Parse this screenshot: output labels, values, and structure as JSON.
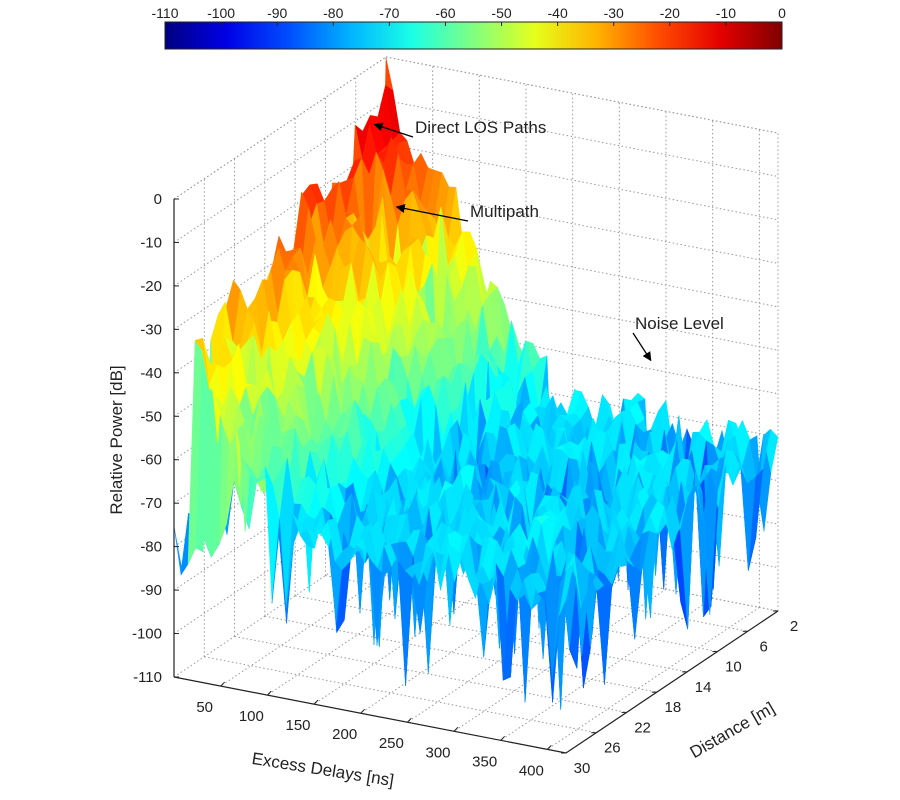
{
  "chart_data": {
    "type": "surface3d",
    "title": "",
    "xlabel": "Excess Delays [ns]",
    "ylabel": "Distance [m]",
    "zlabel": "Relative Power [dB]",
    "x_ticks": [
      50,
      100,
      150,
      200,
      250,
      300,
      350,
      400
    ],
    "y_ticks": [
      2,
      6,
      10,
      14,
      18,
      22,
      26,
      30
    ],
    "z_ticks": [
      0,
      -10,
      -20,
      -30,
      -40,
      -50,
      -60,
      -70,
      -80,
      -90,
      -100,
      -110
    ],
    "xlim": [
      0,
      420
    ],
    "ylim": [
      2,
      30
    ],
    "zlim": [
      -110,
      0
    ],
    "grid": true,
    "colormap": "jet",
    "colorbar": {
      "placement": "top",
      "range": [
        -110,
        0
      ],
      "ticks": [
        -110,
        -100,
        -90,
        -80,
        -70,
        -60,
        -50,
        -40,
        -30,
        -20,
        -10,
        0
      ]
    },
    "surface_features": {
      "los_peak_db_at_2m": -3,
      "los_peak_db_at_30m": -30,
      "noise_level_db": -60
    },
    "annotations": [
      {
        "text": "Direct LOS Paths",
        "target": {
          "x": 20,
          "y": 6,
          "z": -10
        }
      },
      {
        "text": "Multipath",
        "target": {
          "x": 60,
          "y": 8,
          "z": -25
        }
      },
      {
        "text": "Noise Level",
        "target": {
          "x": 300,
          "y": 4,
          "z": -55
        }
      }
    ]
  }
}
